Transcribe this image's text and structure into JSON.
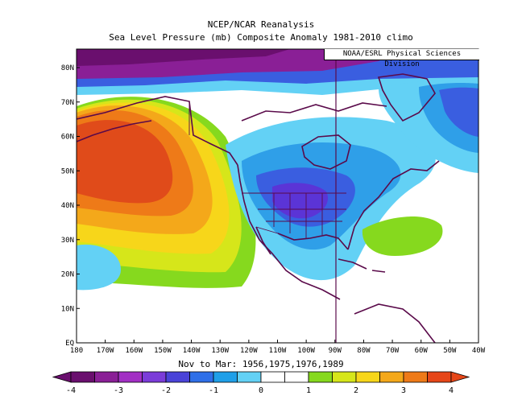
{
  "title": "NCEP/NCAR Reanalysis",
  "subtitle": "Sea Level Pressure (mb) Composite Anomaly 1981-2010 climo",
  "credit": "NOAA/ESRL Physical Sciences Division",
  "period": "Nov to Mar: 1956,1975,1976,1989",
  "lat_labels": [
    "80N",
    "70N",
    "60N",
    "50N",
    "40N",
    "30N",
    "20N",
    "10N",
    "EQ"
  ],
  "lon_labels": [
    "180",
    "170W",
    "160W",
    "150W",
    "140W",
    "130W",
    "120W",
    "110W",
    "100W",
    "90W",
    "80W",
    "70W",
    "60W",
    "50W",
    "40W"
  ],
  "colorbar": {
    "labels": [
      "-4",
      "-3",
      "-2",
      "-1",
      "0",
      "1",
      "2",
      "3",
      "4"
    ],
    "colors": [
      "#6a0f6e",
      "#8a1f96",
      "#a22fc4",
      "#7b3cd9",
      "#4a43d8",
      "#2f6fe8",
      "#1f9fe8",
      "#63d1f5",
      "#ffffff",
      "#ffffff",
      "#86d91e",
      "#d6e61a",
      "#f7d61a",
      "#f4a81a",
      "#ee7a18",
      "#e64618"
    ]
  },
  "colors": {
    "ocean": "#ffffff",
    "coast": "#5a0a4a",
    "strong_high": "#e04b1a",
    "high": "#f58b1f",
    "mid_high": "#f6c11b",
    "low_high": "#c8e42a",
    "weak_high": "#86d91e",
    "weak_low": "#63d1f5",
    "low": "#2f9fe8",
    "mid_low": "#3a5ee0",
    "strong_low": "#5b34d6",
    "deep_low": "#8a1f96"
  }
}
